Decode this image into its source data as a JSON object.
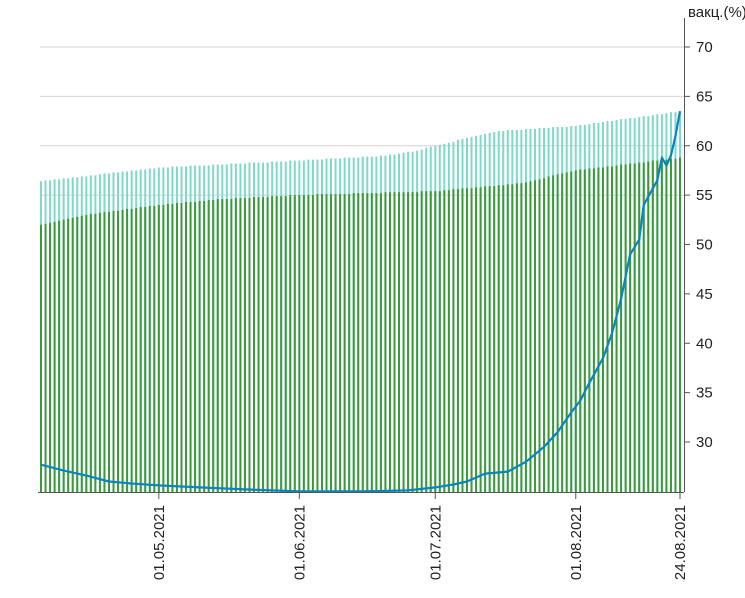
{
  "chart_data": {
    "type": "bar",
    "ylabel": "вакц.(%)",
    "ylim": [
      25,
      70
    ],
    "y_ticks": [
      30,
      35,
      40,
      45,
      50,
      55,
      60,
      65,
      70
    ],
    "x_ticks": [
      "01.05.2021",
      "01.06.2021",
      "01.07.2021",
      "01.08.2021",
      "24.08.2021"
    ],
    "x_range": [
      "2021-04-05",
      "2021-08-24"
    ],
    "grid": true,
    "series": [
      {
        "kind": "bar",
        "color": "#7fd9c8",
        "points": [
          [
            "2021-04-05",
            56.4
          ],
          [
            "2021-05-01",
            57.8
          ],
          [
            "2021-06-01",
            58.5
          ],
          [
            "2021-06-20",
            59.0
          ],
          [
            "2021-06-27",
            59.5
          ],
          [
            "2021-07-01",
            60.0
          ],
          [
            "2021-07-10",
            61.0
          ],
          [
            "2021-07-15",
            61.5
          ],
          [
            "2021-08-01",
            62.0
          ],
          [
            "2021-08-24",
            63.5
          ]
        ]
      },
      {
        "kind": "bar",
        "color": "#3a9a3a",
        "points": [
          [
            "2021-04-05",
            52.0
          ],
          [
            "2021-04-15",
            53.0
          ],
          [
            "2021-05-01",
            54.0
          ],
          [
            "2021-05-15",
            54.6
          ],
          [
            "2021-06-01",
            55.0
          ],
          [
            "2021-07-01",
            55.4
          ],
          [
            "2021-07-20",
            56.2
          ],
          [
            "2021-08-01",
            57.5
          ],
          [
            "2021-08-10",
            58.0
          ],
          [
            "2021-08-24",
            58.8
          ]
        ]
      },
      {
        "kind": "line",
        "color": "#0a84c0",
        "points": [
          [
            "2021-04-05",
            27.7
          ],
          [
            "2021-04-10",
            27.1
          ],
          [
            "2021-04-15",
            26.6
          ],
          [
            "2021-04-20",
            26.0
          ],
          [
            "2021-04-25",
            25.8
          ],
          [
            "2021-05-01",
            25.6
          ],
          [
            "2021-05-10",
            25.4
          ],
          [
            "2021-05-20",
            25.2
          ],
          [
            "2021-06-01",
            25.0
          ],
          [
            "2021-06-15",
            25.0
          ],
          [
            "2021-06-25",
            25.1
          ],
          [
            "2021-07-01",
            25.4
          ],
          [
            "2021-07-05",
            25.7
          ],
          [
            "2021-07-08",
            26.0
          ],
          [
            "2021-07-12",
            26.8
          ],
          [
            "2021-07-17",
            27.0
          ],
          [
            "2021-07-21",
            28.0
          ],
          [
            "2021-07-25",
            29.5
          ],
          [
            "2021-07-28",
            31.0
          ],
          [
            "2021-07-31",
            33.0
          ],
          [
            "2021-08-02",
            34.2
          ],
          [
            "2021-08-04",
            36.0
          ],
          [
            "2021-08-07",
            38.5
          ],
          [
            "2021-08-09",
            41.0
          ],
          [
            "2021-08-11",
            44.5
          ],
          [
            "2021-08-13",
            49.0
          ],
          [
            "2021-08-15",
            50.5
          ],
          [
            "2021-08-16",
            54.0
          ],
          [
            "2021-08-19",
            56.5
          ],
          [
            "2021-08-20",
            58.8
          ],
          [
            "2021-08-21",
            58.0
          ],
          [
            "2021-08-22",
            59.0
          ],
          [
            "2021-08-23",
            61.0
          ],
          [
            "2021-08-24",
            63.5
          ]
        ]
      }
    ]
  }
}
